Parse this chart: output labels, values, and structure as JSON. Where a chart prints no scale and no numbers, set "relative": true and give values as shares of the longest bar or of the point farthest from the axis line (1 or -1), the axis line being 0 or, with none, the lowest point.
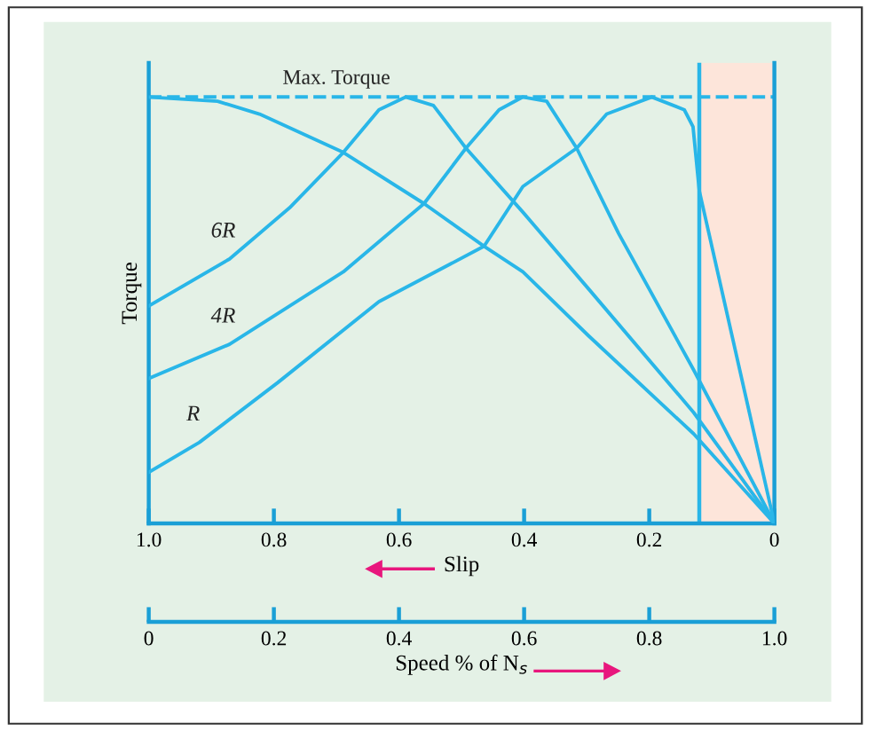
{
  "chart_data": {
    "type": "line",
    "relative": true,
    "xlabel": "Slip",
    "x2label": "Speed % of N$_{s}$",
    "ylabel": "Torque",
    "xlim": [
      1.0,
      0
    ],
    "xticks": [
      {
        "value": 1,
        "label": "1.0"
      },
      0.8,
      0.6,
      0.4,
      0.2,
      0
    ],
    "x2lim": [
      0,
      1.0
    ],
    "x2ticks": [
      0,
      0.2,
      0.4,
      0.6,
      0.8,
      {
        "value": 1,
        "label": "1.0"
      }
    ],
    "tick_labels": "x",
    "grid": false,
    "legend": false,
    "marker": "none",
    "line_style": "solid",
    "ref_lines": [
      {
        "axis": "y",
        "value": 1,
        "label": "Max. Torque",
        "color": "#29b6e8",
        "line_style": "dashed"
      },
      {
        "axis": "x",
        "value": 0.12,
        "color": "#29b6e8",
        "line_style": "solid"
      }
    ],
    "bands": [
      {
        "axis": "x",
        "from": 0.12,
        "to": 0,
        "color": "#fde5da"
      }
    ],
    "series": [
      {
        "name": "6R",
        "color": "#29b6e8",
        "x": [
          1.0,
          0.871,
          0.775,
          0.689,
          0.632,
          0.589,
          0.545,
          0.493,
          0.402,
          0.297,
          0.129,
          0
        ],
        "values": [
          0.51,
          0.62,
          0.74,
          0.87,
          0.97,
          1.0,
          0.98,
          0.88,
          0.73,
          0.55,
          0.26,
          0
        ]
      },
      {
        "name": "4R",
        "color": "#29b6e8",
        "x": [
          1.0,
          0.871,
          0.689,
          0.56,
          0.493,
          0.44,
          0.402,
          0.364,
          0.316,
          0.249,
          0.129,
          0
        ],
        "values": [
          0.34,
          0.42,
          0.59,
          0.75,
          0.88,
          0.97,
          1.0,
          0.99,
          0.88,
          0.68,
          0.36,
          0
        ]
      },
      {
        "name": "R",
        "color": "#29b6e8",
        "x": [
          1.0,
          0.919,
          0.794,
          0.632,
          0.464,
          0.402,
          0.316,
          0.268,
          0.196,
          0.144,
          0.13,
          0.12,
          0
        ],
        "values": [
          0.12,
          0.19,
          0.33,
          0.52,
          0.65,
          0.79,
          0.88,
          0.96,
          1.0,
          0.97,
          0.93,
          0.78,
          0
        ]
      },
      {
        "color": "#29b6e8",
        "x": [
          1.0,
          0.89,
          0.823,
          0.689,
          0.56,
          0.464,
          0.402,
          0.297,
          0.129,
          0
        ],
        "values": [
          1.0,
          0.99,
          0.96,
          0.87,
          0.75,
          0.65,
          0.59,
          0.44,
          0.21,
          0
        ]
      }
    ]
  }
}
